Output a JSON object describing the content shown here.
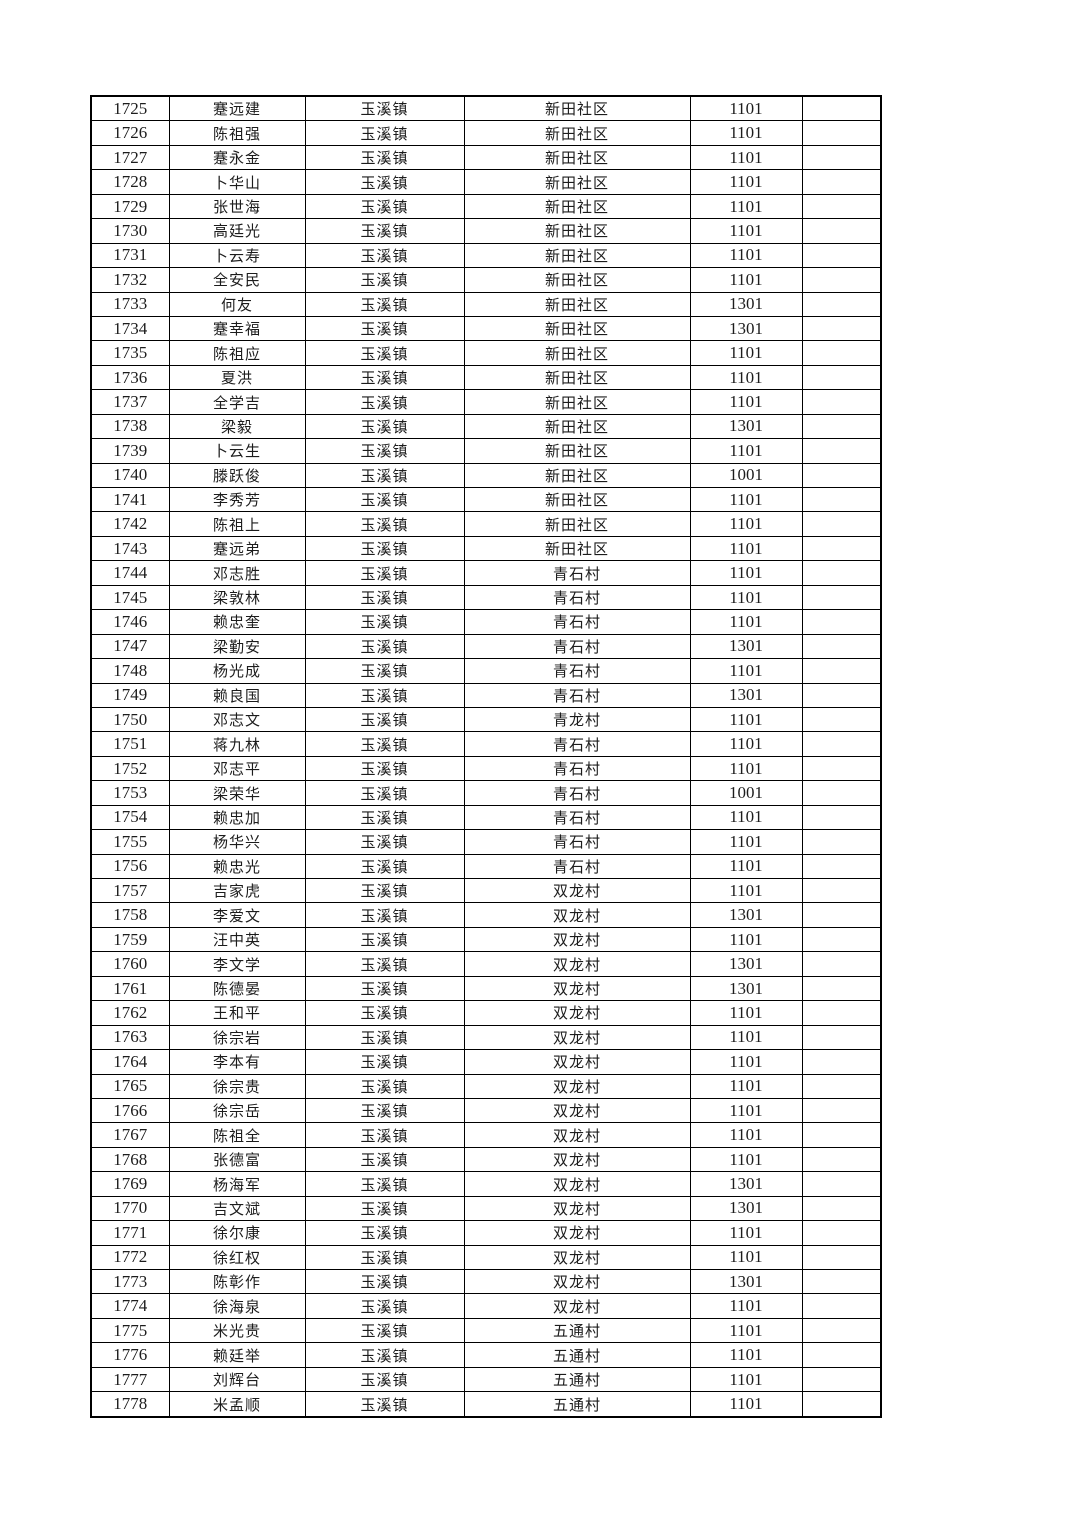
{
  "page": {
    "background_color": "#ffffff",
    "text_color": "#1c1c1c",
    "border_color": "#000000"
  },
  "table": {
    "column_keys": [
      "no",
      "name",
      "town",
      "village",
      "code",
      "note"
    ],
    "rows": [
      [
        "1725",
        "蹇远建",
        "玉溪镇",
        "新田社区",
        "1101",
        ""
      ],
      [
        "1726",
        "陈祖强",
        "玉溪镇",
        "新田社区",
        "1101",
        ""
      ],
      [
        "1727",
        "蹇永金",
        "玉溪镇",
        "新田社区",
        "1101",
        ""
      ],
      [
        "1728",
        "卜华山",
        "玉溪镇",
        "新田社区",
        "1101",
        ""
      ],
      [
        "1729",
        "张世海",
        "玉溪镇",
        "新田社区",
        "1101",
        ""
      ],
      [
        "1730",
        "高廷光",
        "玉溪镇",
        "新田社区",
        "1101",
        ""
      ],
      [
        "1731",
        "卜云寿",
        "玉溪镇",
        "新田社区",
        "1101",
        ""
      ],
      [
        "1732",
        "全安民",
        "玉溪镇",
        "新田社区",
        "1101",
        ""
      ],
      [
        "1733",
        "何友",
        "玉溪镇",
        "新田社区",
        "1301",
        ""
      ],
      [
        "1734",
        "蹇幸福",
        "玉溪镇",
        "新田社区",
        "1301",
        ""
      ],
      [
        "1735",
        "陈祖应",
        "玉溪镇",
        "新田社区",
        "1101",
        ""
      ],
      [
        "1736",
        "夏洪",
        "玉溪镇",
        "新田社区",
        "1101",
        ""
      ],
      [
        "1737",
        "全学吉",
        "玉溪镇",
        "新田社区",
        "1101",
        ""
      ],
      [
        "1738",
        "梁毅",
        "玉溪镇",
        "新田社区",
        "1301",
        ""
      ],
      [
        "1739",
        "卜云生",
        "玉溪镇",
        "新田社区",
        "1101",
        ""
      ],
      [
        "1740",
        "滕跃俊",
        "玉溪镇",
        "新田社区",
        "1001",
        ""
      ],
      [
        "1741",
        "李秀芳",
        "玉溪镇",
        "新田社区",
        "1101",
        ""
      ],
      [
        "1742",
        "陈祖上",
        "玉溪镇",
        "新田社区",
        "1101",
        ""
      ],
      [
        "1743",
        "蹇远弟",
        "玉溪镇",
        "新田社区",
        "1101",
        ""
      ],
      [
        "1744",
        "邓志胜",
        "玉溪镇",
        "青石村",
        "1101",
        ""
      ],
      [
        "1745",
        "梁敦林",
        "玉溪镇",
        "青石村",
        "1101",
        ""
      ],
      [
        "1746",
        "赖忠奎",
        "玉溪镇",
        "青石村",
        "1101",
        ""
      ],
      [
        "1747",
        "梁勤安",
        "玉溪镇",
        "青石村",
        "1301",
        ""
      ],
      [
        "1748",
        "杨光成",
        "玉溪镇",
        "青石村",
        "1101",
        ""
      ],
      [
        "1749",
        "赖良国",
        "玉溪镇",
        "青石村",
        "1301",
        ""
      ],
      [
        "1750",
        "邓志文",
        "玉溪镇",
        "青龙村",
        "1101",
        ""
      ],
      [
        "1751",
        "蒋九林",
        "玉溪镇",
        "青石村",
        "1101",
        ""
      ],
      [
        "1752",
        "邓志平",
        "玉溪镇",
        "青石村",
        "1101",
        ""
      ],
      [
        "1753",
        "梁荣华",
        "玉溪镇",
        "青石村",
        "1001",
        ""
      ],
      [
        "1754",
        "赖忠加",
        "玉溪镇",
        "青石村",
        "1101",
        ""
      ],
      [
        "1755",
        "杨华兴",
        "玉溪镇",
        "青石村",
        "1101",
        ""
      ],
      [
        "1756",
        "赖忠光",
        "玉溪镇",
        "青石村",
        "1101",
        ""
      ],
      [
        "1757",
        "吉家虎",
        "玉溪镇",
        "双龙村",
        "1101",
        ""
      ],
      [
        "1758",
        "李爱文",
        "玉溪镇",
        "双龙村",
        "1301",
        ""
      ],
      [
        "1759",
        "汪中英",
        "玉溪镇",
        "双龙村",
        "1101",
        ""
      ],
      [
        "1760",
        "李文学",
        "玉溪镇",
        "双龙村",
        "1301",
        ""
      ],
      [
        "1761",
        "陈德晏",
        "玉溪镇",
        "双龙村",
        "1301",
        ""
      ],
      [
        "1762",
        "王和平",
        "玉溪镇",
        "双龙村",
        "1101",
        ""
      ],
      [
        "1763",
        "徐宗岩",
        "玉溪镇",
        "双龙村",
        "1101",
        ""
      ],
      [
        "1764",
        "李本有",
        "玉溪镇",
        "双龙村",
        "1101",
        ""
      ],
      [
        "1765",
        "徐宗贵",
        "玉溪镇",
        "双龙村",
        "1101",
        ""
      ],
      [
        "1766",
        "徐宗岳",
        "玉溪镇",
        "双龙村",
        "1101",
        ""
      ],
      [
        "1767",
        "陈祖全",
        "玉溪镇",
        "双龙村",
        "1101",
        ""
      ],
      [
        "1768",
        "张德富",
        "玉溪镇",
        "双龙村",
        "1101",
        ""
      ],
      [
        "1769",
        "杨海军",
        "玉溪镇",
        "双龙村",
        "1301",
        ""
      ],
      [
        "1770",
        "吉文斌",
        "玉溪镇",
        "双龙村",
        "1301",
        ""
      ],
      [
        "1771",
        "徐尔康",
        "玉溪镇",
        "双龙村",
        "1101",
        ""
      ],
      [
        "1772",
        "徐红权",
        "玉溪镇",
        "双龙村",
        "1101",
        ""
      ],
      [
        "1773",
        "陈彰作",
        "玉溪镇",
        "双龙村",
        "1301",
        ""
      ],
      [
        "1774",
        "徐海泉",
        "玉溪镇",
        "双龙村",
        "1101",
        ""
      ],
      [
        "1775",
        "米光贵",
        "玉溪镇",
        "五通村",
        "1101",
        ""
      ],
      [
        "1776",
        "赖廷举",
        "玉溪镇",
        "五通村",
        "1101",
        ""
      ],
      [
        "1777",
        "刘辉台",
        "玉溪镇",
        "五通村",
        "1101",
        ""
      ],
      [
        "1778",
        "米孟顺",
        "玉溪镇",
        "五通村",
        "1101",
        ""
      ]
    ]
  }
}
